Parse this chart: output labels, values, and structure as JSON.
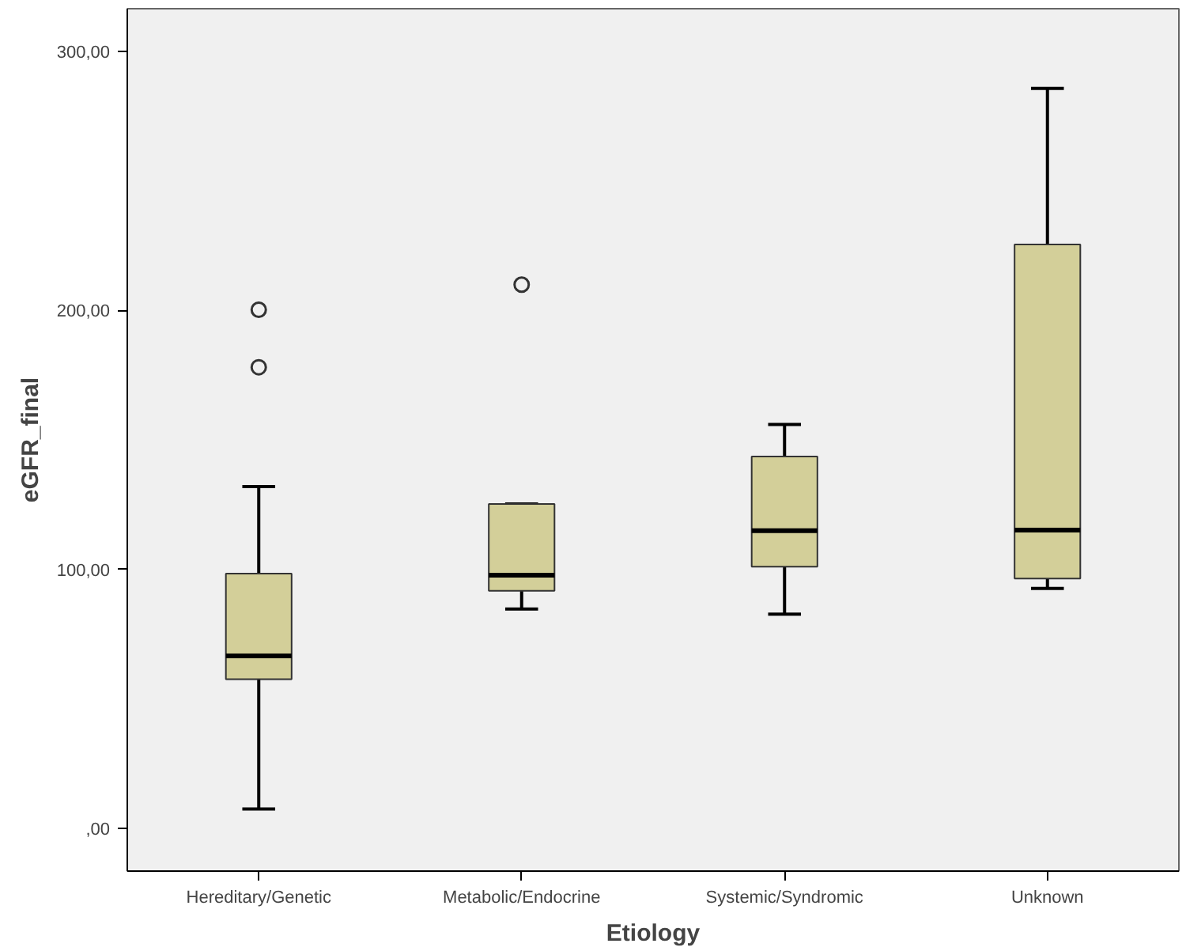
{
  "chart_data": {
    "type": "box",
    "xlabel": "Etiology",
    "ylabel": "eGFR_final",
    "categories": [
      "Hereditary/Genetic",
      "Metabolic/Endocrine",
      "Systemic/Syndromic",
      "Unknown"
    ],
    "color": "#d3cf99",
    "boxes": [
      {
        "low": 7.5,
        "q1": 57.6,
        "median": 66.6,
        "q3": 98.3,
        "high": 131.9,
        "outliers": [
          200.2,
          178
        ]
      },
      {
        "low": 84.7,
        "q1": 91.7,
        "median": 97.7,
        "q3": 125.2,
        "high": 125.2,
        "outliers": [
          209.9
        ]
      },
      {
        "low": 82.7,
        "q1": 101,
        "median": 114.9,
        "q3": 143.5,
        "high": 155.9
      },
      {
        "low": 92.6,
        "q1": 96.4,
        "median": 115.1,
        "q3": 225.4,
        "high": 285.6
      }
    ],
    "ylim": [
      -16.5,
      316.4
    ],
    "yticks": [
      {
        "value": 0,
        "label": ",00"
      },
      {
        "value": 100,
        "label": "100,00"
      },
      {
        "value": 200,
        "label": "200,00"
      },
      {
        "value": 300,
        "label": "300,00"
      }
    ],
    "grid": false
  }
}
